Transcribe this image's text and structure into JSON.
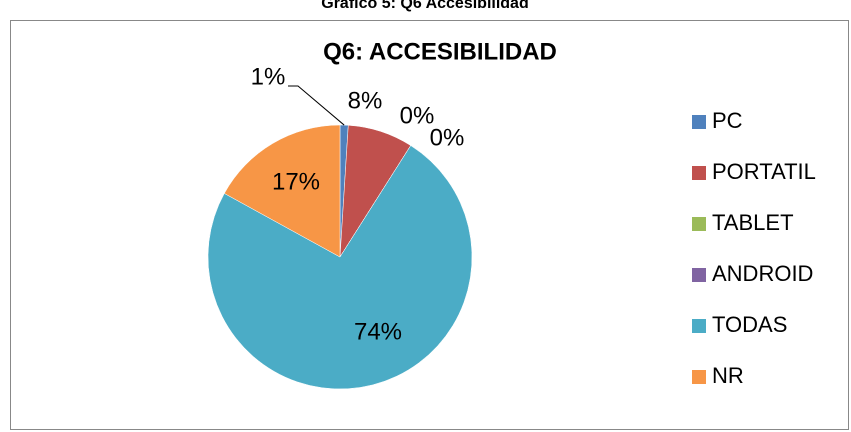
{
  "caption": "Gráfico 5: Q6 Accesibilidad",
  "chart_data": {
    "type": "pie",
    "title": "Q6: ACCESIBILIDAD",
    "categories": [
      "PC",
      "PORTATIL",
      "TABLET",
      "ANDROID",
      "TODAS",
      "NR"
    ],
    "values": [
      1,
      8,
      0,
      0,
      74,
      17
    ],
    "value_labels": [
      "1%",
      "8%",
      "0%",
      "0%",
      "74%",
      "17%"
    ],
    "colors": [
      "#4f81bd",
      "#c0504d",
      "#9bbb59",
      "#8064a2",
      "#4bacc6",
      "#f79646"
    ],
    "legend": "right"
  }
}
